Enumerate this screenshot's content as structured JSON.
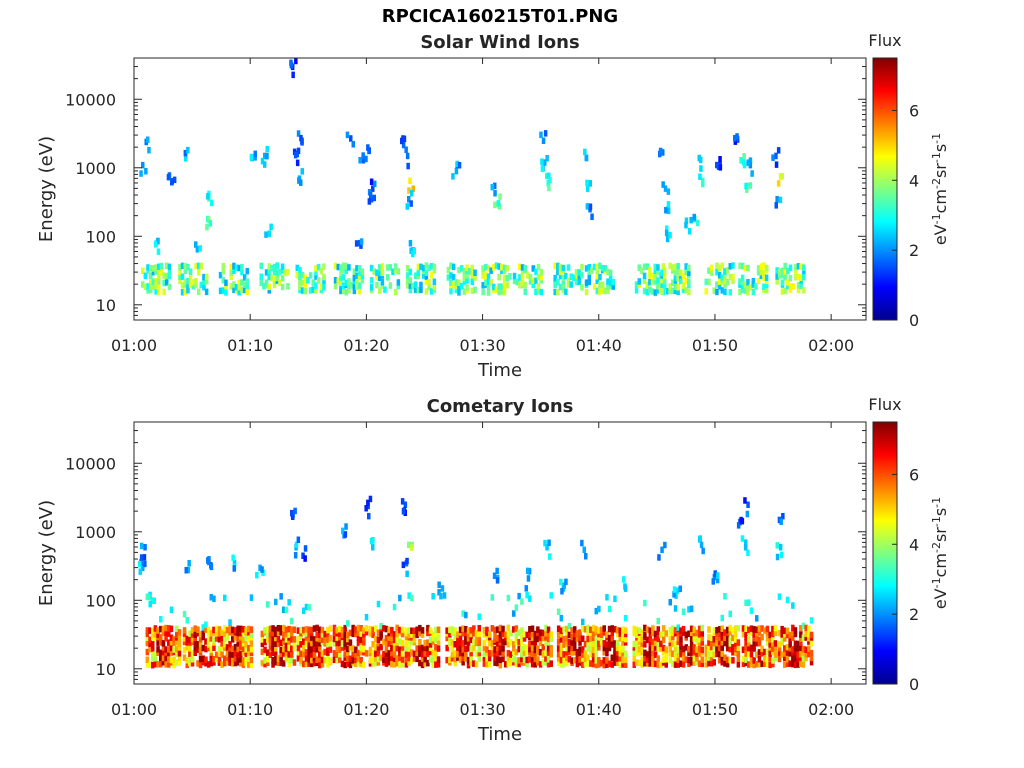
{
  "figure": {
    "title": "RPCICA160215T01.PNG"
  },
  "chart_data": [
    {
      "type": "heatmap",
      "title": "Solar Wind Ions",
      "xlabel": "Time",
      "ylabel": "Energy (eV)",
      "x_ticks": [
        "01:00",
        "01:10",
        "01:20",
        "01:30",
        "01:40",
        "01:50",
        "02:00"
      ],
      "xlim_minutes": [
        0,
        63
      ],
      "y_scale": "log",
      "y_ticks": [
        10,
        100,
        1000,
        10000
      ],
      "y_tick_labels": [
        "10",
        "100",
        "1000",
        "10000"
      ],
      "ylim": [
        6,
        40000
      ],
      "colorbar": {
        "title": "Flux",
        "label": "eV-1cm-2sr-1s-1",
        "ticks": [
          0,
          2,
          4,
          6
        ],
        "tick_labels": [
          "0",
          "2",
          "4",
          "6"
        ],
        "range": [
          0,
          7.5
        ],
        "colormap": "jet"
      },
      "bursts_minutes": [
        0.6,
        3.8,
        7.3,
        10.8,
        13.9,
        17.2,
        20.3,
        23.4,
        26.9,
        29.9,
        32.6,
        36.1,
        38.8,
        43.1,
        45.3,
        49.1,
        52.0,
        55.2
      ],
      "scattered_high_energy": [
        {
          "t": 0.6,
          "e": 1100,
          "f": 2.0
        },
        {
          "t": 0.9,
          "e": 2400,
          "f": 1.8
        },
        {
          "t": 3.1,
          "e": 620,
          "f": 1.6
        },
        {
          "t": 4.3,
          "e": 1500,
          "f": 2.2
        },
        {
          "t": 6.3,
          "e": 420,
          "f": 3.0
        },
        {
          "t": 6.2,
          "e": 180,
          "f": 3.2
        },
        {
          "t": 10.0,
          "e": 1400,
          "f": 2.4
        },
        {
          "t": 11.1,
          "e": 1500,
          "f": 2.2
        },
        {
          "t": 13.5,
          "e": 30000,
          "f": 1.2
        },
        {
          "t": 13.9,
          "e": 1600,
          "f": 1.6
        },
        {
          "t": 14.1,
          "e": 700,
          "f": 2.2
        },
        {
          "t": 14.3,
          "e": 2500,
          "f": 1.5
        },
        {
          "t": 18.5,
          "e": 2700,
          "f": 1.5
        },
        {
          "t": 19.6,
          "e": 1300,
          "f": 1.6
        },
        {
          "t": 20.1,
          "e": 1800,
          "f": 1.3
        },
        {
          "t": 20.4,
          "e": 500,
          "f": 1.4
        },
        {
          "t": 20.3,
          "e": 350,
          "f": 1.6
        },
        {
          "t": 23.0,
          "e": 2700,
          "f": 1.4
        },
        {
          "t": 23.4,
          "e": 1500,
          "f": 1.8
        },
        {
          "t": 23.6,
          "e": 650,
          "f": 4.8
        },
        {
          "t": 23.5,
          "e": 350,
          "f": 2.0
        },
        {
          "t": 27.6,
          "e": 900,
          "f": 2.2
        },
        {
          "t": 30.9,
          "e": 550,
          "f": 1.8
        },
        {
          "t": 31.2,
          "e": 300,
          "f": 3.2
        },
        {
          "t": 35.1,
          "e": 2500,
          "f": 2.0
        },
        {
          "t": 35.2,
          "e": 1200,
          "f": 2.2
        },
        {
          "t": 35.5,
          "e": 600,
          "f": 3.0
        },
        {
          "t": 38.8,
          "e": 1400,
          "f": 2.0
        },
        {
          "t": 38.9,
          "e": 500,
          "f": 2.6
        },
        {
          "t": 39.1,
          "e": 250,
          "f": 1.8
        },
        {
          "t": 45.1,
          "e": 1600,
          "f": 1.8
        },
        {
          "t": 45.6,
          "e": 500,
          "f": 2.2
        },
        {
          "t": 45.8,
          "e": 250,
          "f": 2.4
        },
        {
          "t": 45.7,
          "e": 130,
          "f": 2.8
        },
        {
          "t": 47.4,
          "e": 170,
          "f": 2.5
        },
        {
          "t": 48.1,
          "e": 180,
          "f": 2.6
        },
        {
          "t": 48.5,
          "e": 1400,
          "f": 2.4
        },
        {
          "t": 48.8,
          "e": 650,
          "f": 3.2
        },
        {
          "t": 50.3,
          "e": 1100,
          "f": 1.5
        },
        {
          "t": 51.8,
          "e": 2600,
          "f": 1.4
        },
        {
          "t": 52.1,
          "e": 1300,
          "f": 3.0
        },
        {
          "t": 52.6,
          "e": 550,
          "f": 3.2
        },
        {
          "t": 52.9,
          "e": 1100,
          "f": 2.0
        },
        {
          "t": 55.1,
          "e": 1500,
          "f": 1.6
        },
        {
          "t": 55.5,
          "e": 750,
          "f": 4.8
        },
        {
          "t": 55.2,
          "e": 350,
          "f": 2.0
        },
        {
          "t": 1.9,
          "e": 85,
          "f": 2.5
        },
        {
          "t": 5.3,
          "e": 65,
          "f": 2.2
        },
        {
          "t": 19.3,
          "e": 80,
          "f": 1.6
        },
        {
          "t": 23.7,
          "e": 62,
          "f": 2.4
        },
        {
          "t": 11.5,
          "e": 110,
          "f": 2.6
        }
      ]
    },
    {
      "type": "heatmap",
      "title": "Cometary Ions",
      "xlabel": "Time",
      "ylabel": "Energy (eV)",
      "x_ticks": [
        "01:00",
        "01:10",
        "01:20",
        "01:30",
        "01:40",
        "01:50",
        "02:00"
      ],
      "xlim_minutes": [
        0,
        63
      ],
      "y_scale": "log",
      "y_ticks": [
        10,
        100,
        1000,
        10000
      ],
      "y_tick_labels": [
        "10",
        "100",
        "1000",
        "10000"
      ],
      "ylim": [
        6,
        40000
      ],
      "colorbar": {
        "title": "Flux",
        "label": "eV-1cm-2sr-1s-1",
        "ticks": [
          0,
          2,
          4,
          6
        ],
        "tick_labels": [
          "0",
          "2",
          "4",
          "6"
        ],
        "range": [
          0,
          7.5
        ],
        "colormap": "jet"
      },
      "bursts_minutes": [
        1.0,
        4.2,
        7.2,
        10.9,
        14.0,
        17.1,
        20.2,
        23.3,
        26.8,
        30.0,
        33.0,
        36.4,
        39.4,
        42.9,
        46.0,
        49.1,
        52.3,
        55.4
      ],
      "scattered_high_energy": [
        {
          "t": 0.8,
          "e": 600,
          "f": 1.8
        },
        {
          "t": 0.6,
          "e": 300,
          "f": 2.2
        },
        {
          "t": 1.4,
          "e": 100,
          "f": 3.0
        },
        {
          "t": 4.6,
          "e": 350,
          "f": 2.2
        },
        {
          "t": 6.3,
          "e": 400,
          "f": 2.0
        },
        {
          "t": 8.5,
          "e": 350,
          "f": 2.4
        },
        {
          "t": 10.7,
          "e": 300,
          "f": 2.2
        },
        {
          "t": 13.5,
          "e": 1700,
          "f": 1.6
        },
        {
          "t": 13.8,
          "e": 600,
          "f": 2.2
        },
        {
          "t": 14.4,
          "e": 450,
          "f": 1.4
        },
        {
          "t": 18.1,
          "e": 1200,
          "f": 2.0
        },
        {
          "t": 20.0,
          "e": 2400,
          "f": 1.5
        },
        {
          "t": 20.4,
          "e": 600,
          "f": 2.4
        },
        {
          "t": 23.2,
          "e": 2500,
          "f": 1.6
        },
        {
          "t": 23.5,
          "e": 650,
          "f": 3.8
        },
        {
          "t": 23.3,
          "e": 350,
          "f": 1.8
        },
        {
          "t": 35.4,
          "e": 600,
          "f": 2.4
        },
        {
          "t": 38.6,
          "e": 550,
          "f": 2.2
        },
        {
          "t": 45.3,
          "e": 550,
          "f": 2.0
        },
        {
          "t": 48.7,
          "e": 650,
          "f": 2.2
        },
        {
          "t": 52.0,
          "e": 1400,
          "f": 1.4
        },
        {
          "t": 52.7,
          "e": 2500,
          "f": 1.6
        },
        {
          "t": 52.5,
          "e": 700,
          "f": 2.4
        },
        {
          "t": 55.5,
          "e": 600,
          "f": 2.4
        },
        {
          "t": 55.4,
          "e": 1500,
          "f": 1.6
        },
        {
          "t": 26.4,
          "e": 150,
          "f": 2.2
        },
        {
          "t": 31.1,
          "e": 270,
          "f": 2.0
        },
        {
          "t": 33.8,
          "e": 210,
          "f": 2.0
        },
        {
          "t": 36.8,
          "e": 150,
          "f": 2.4
        },
        {
          "t": 42.1,
          "e": 160,
          "f": 2.4
        },
        {
          "t": 46.6,
          "e": 140,
          "f": 2.6
        },
        {
          "t": 49.8,
          "e": 220,
          "f": 2.0
        }
      ]
    }
  ]
}
